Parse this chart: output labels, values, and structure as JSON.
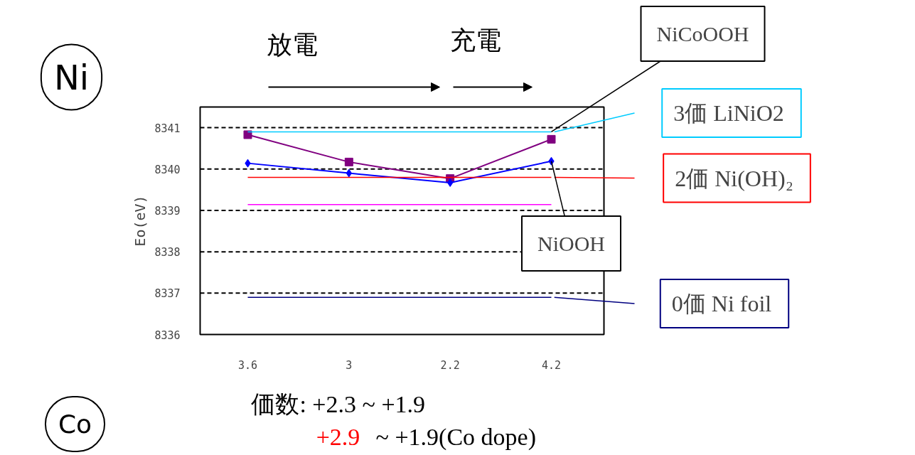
{
  "chart_data": {
    "type": "line",
    "categories": [
      "3.6",
      "3",
      "2.2",
      "4.2"
    ],
    "ylabel": "Eo(eV)",
    "ylim": [
      8336,
      8341.5
    ],
    "yticks": [
      8336,
      8337,
      8338,
      8339,
      8340,
      8341
    ],
    "grid": "y",
    "legend": "right",
    "series": [
      {
        "color": "#800080",
        "marker": "square",
        "values": [
          8340.83,
          8340.17,
          8339.77,
          8340.72
        ]
      },
      {
        "color": "#0000ff",
        "marker": "diamond",
        "values": [
          8340.14,
          8339.9,
          8339.67,
          8340.19
        ]
      },
      {
        "name": "3価  LiNiO2",
        "color": "#00ccff",
        "marker": "none",
        "values": [
          8340.9,
          8340.9,
          8340.9,
          8340.9
        ]
      },
      {
        "name": "2価  Ni(OH)₂",
        "color": "#ff0000",
        "marker": "none",
        "values": [
          8339.8,
          8339.8,
          8339.8,
          8339.8
        ]
      },
      {
        "color": "#ff00ff",
        "marker": "none",
        "values": [
          8339.14,
          8339.14,
          8339.14,
          8339.14
        ]
      },
      {
        "name": "0価  Ni foil",
        "color": "#000080",
        "marker": "none",
        "values": [
          8336.9,
          8336.9,
          8336.9,
          8336.9
        ]
      }
    ],
    "annotations": [
      "Ni",
      "Co",
      "放電",
      "充電",
      {
        "text": "NiCoOOH",
        "x": "4.2",
        "y": 8340.9
      },
      {
        "text": "NiOOH",
        "x": "4.2",
        "y": 8340.19
      },
      "価数:  +2.3  ~  +1.9",
      "+2.9",
      "~  +1.9(Co dope)"
    ]
  }
}
